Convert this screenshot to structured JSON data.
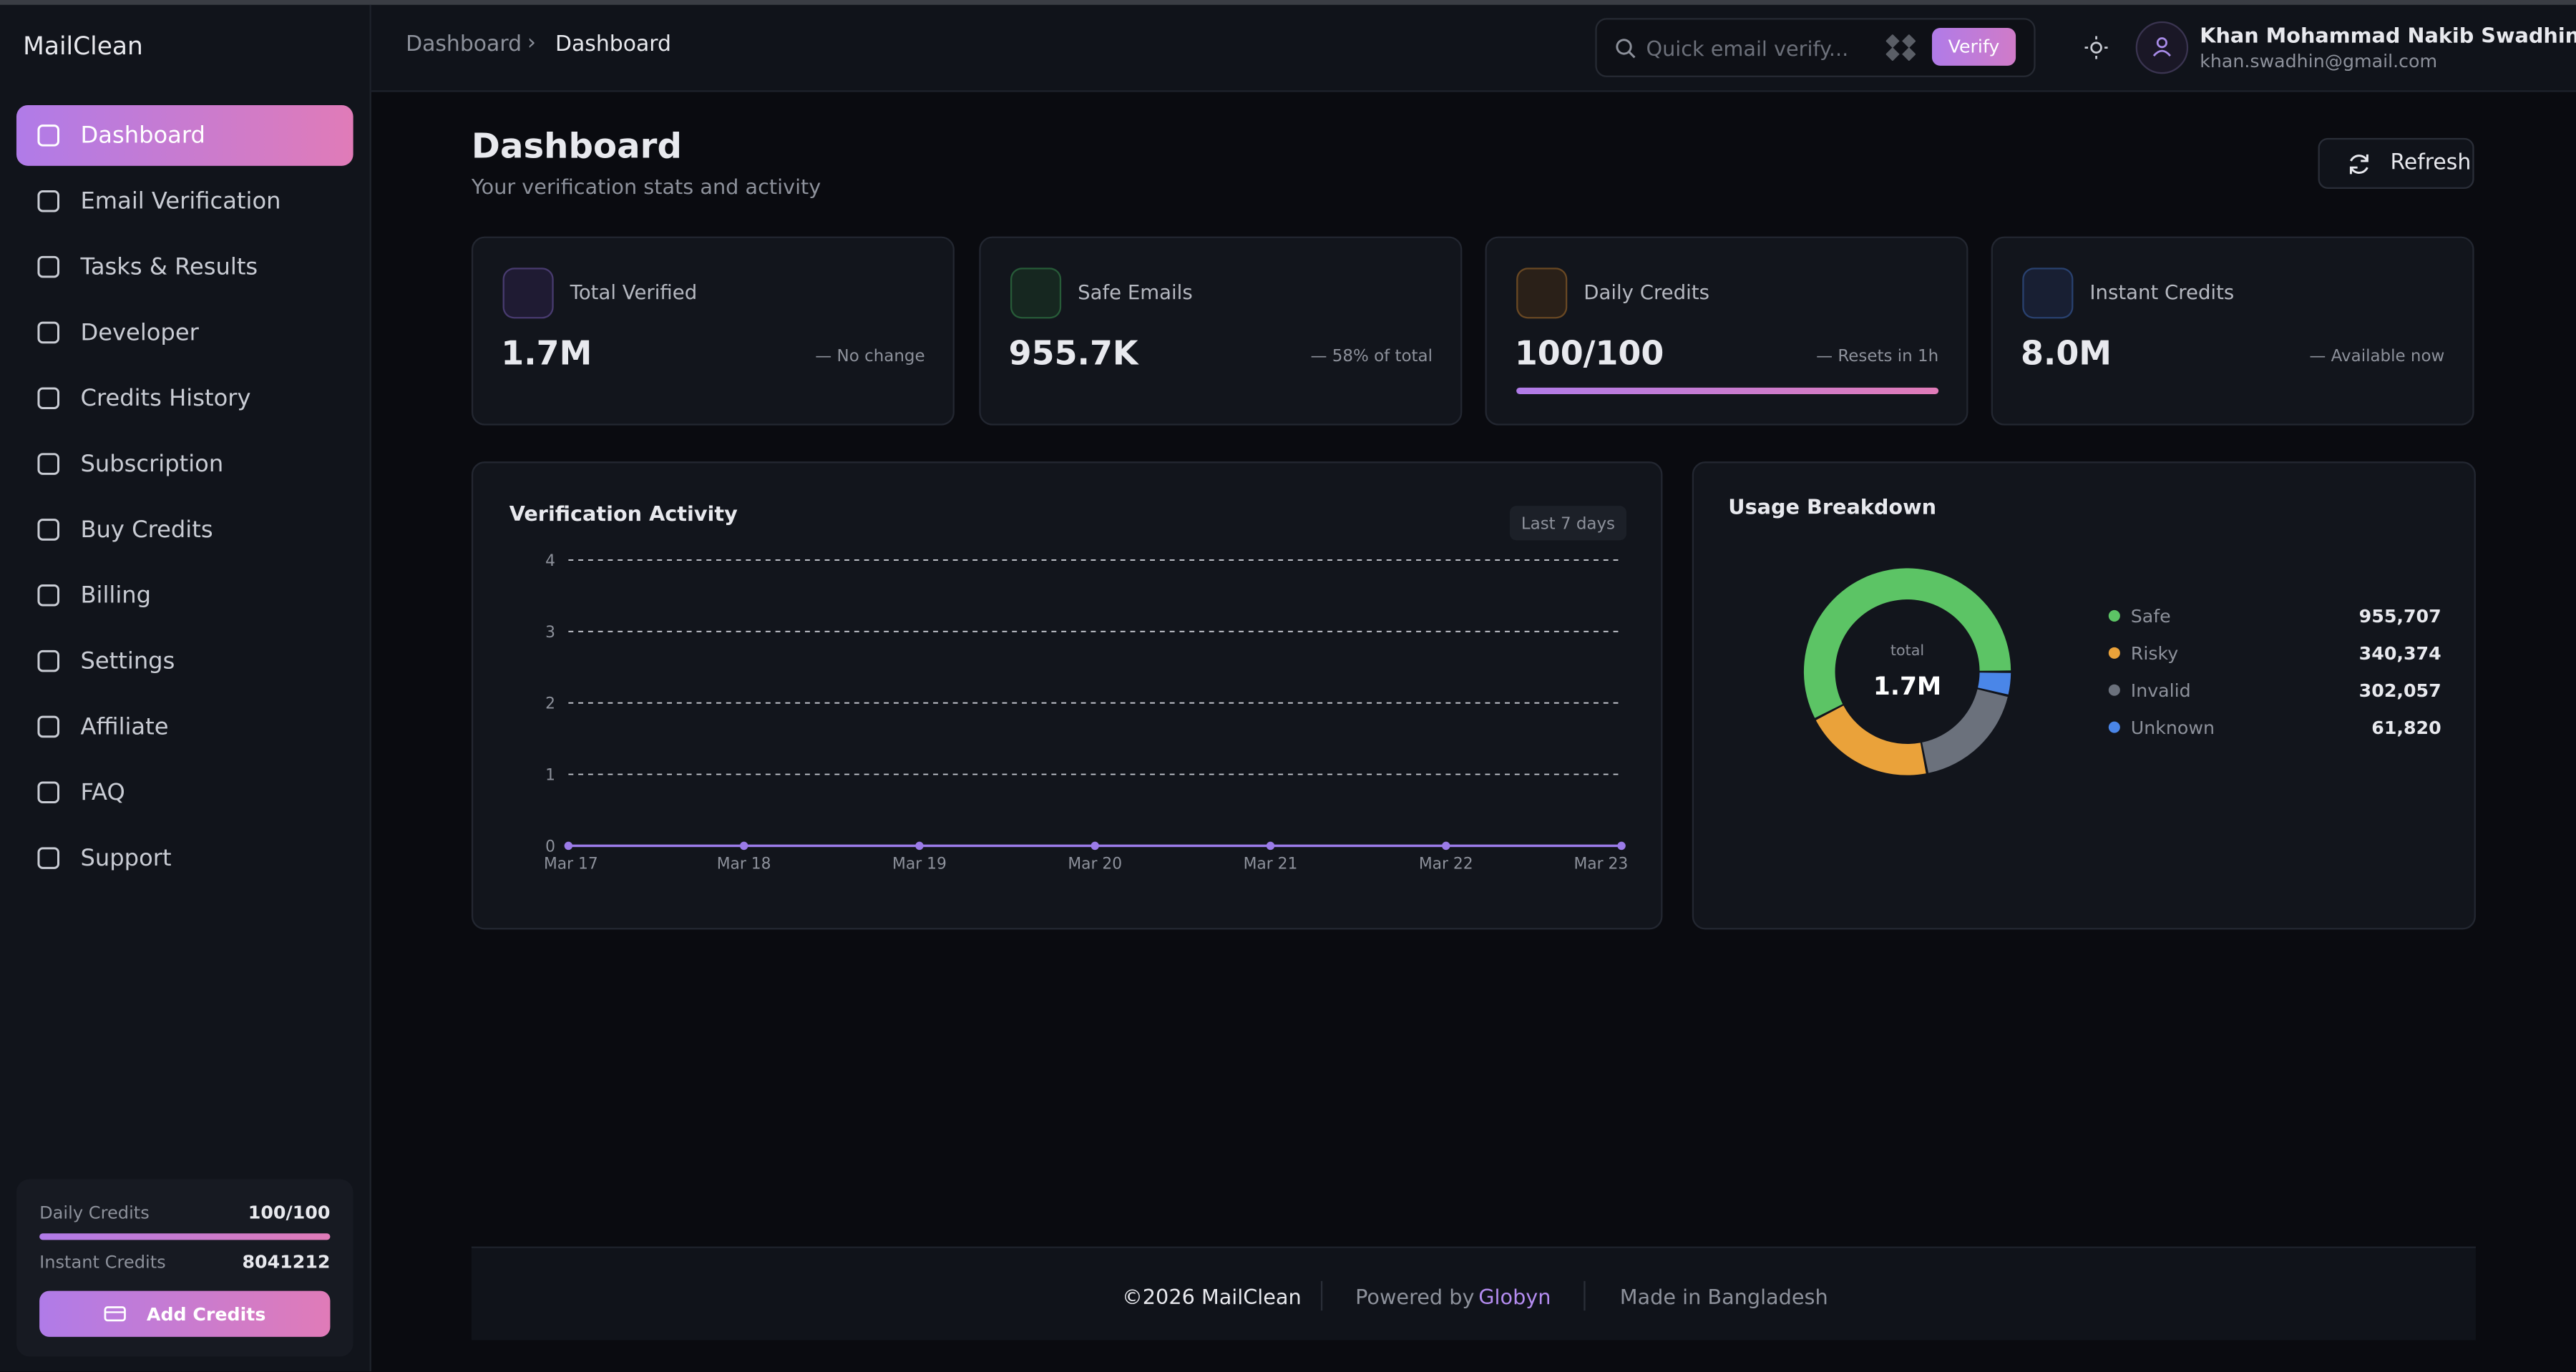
{
  "sidebar": {
    "logo": "MailClean",
    "nav": [
      "Dashboard",
      "Email Verification",
      "Tasks & Results",
      "Developer",
      "Credits History",
      "Subscription",
      "Buy Credits",
      "Billing",
      "Settings",
      "Affiliate",
      "FAQ",
      "Support"
    ],
    "credits": {
      "daily_label": "Daily Credits",
      "daily_value": "100/100",
      "instant_label": "Instant Credits",
      "instant_value": "8041212",
      "button": "Add Credits"
    }
  },
  "header": {
    "breadcrumb": [
      "Dashboard",
      "Dashboard"
    ],
    "search_placeholder": "Quick email verify...",
    "verify_button": "Verify",
    "user_name": "Khan Mohammad Nakib Swadhin",
    "user_email": "khan.swadhin@gmail.com"
  },
  "page": {
    "title": "Dashboard",
    "subtitle": "Your verification stats and activity",
    "refresh": "Refresh"
  },
  "stats": [
    {
      "label": "Total Verified",
      "value": "1.7M",
      "note": "— No change"
    },
    {
      "label": "Safe Emails",
      "value": "955.7K",
      "note": "— 58% of total"
    },
    {
      "label": "Daily Credits",
      "value": "100/100",
      "note": "— Resets in 1h"
    },
    {
      "label": "Instant Credits",
      "value": "8.0M",
      "note": "— Available now"
    }
  ],
  "activity": {
    "type": "line",
    "title": "Verification Activity",
    "range_label": "Last 7 days",
    "categories": [
      "Mar 17",
      "Mar 18",
      "Mar 19",
      "Mar 20",
      "Mar 21",
      "Mar 22",
      "Mar 23"
    ],
    "values": [
      0,
      0,
      0,
      0,
      0,
      0,
      0
    ],
    "color": "#9b7be8",
    "ylim": [
      0,
      4
    ],
    "yticks": [
      0,
      1,
      2,
      3,
      4
    ],
    "grid": true
  },
  "usage": {
    "type": "pie",
    "title": "Usage Breakdown",
    "center_label": "total",
    "center_value": "1.7M",
    "categories": [
      "Safe",
      "Risky",
      "Invalid",
      "Unknown"
    ],
    "values": [
      955707,
      340374,
      302057,
      61820
    ],
    "value_labels": [
      "955,707",
      "340,374",
      "302,057",
      "61,820"
    ],
    "colors": [
      "#5cc465",
      "#eaa23a",
      "#6b717c",
      "#4a86e8"
    ]
  },
  "footer": {
    "copyright": "©2026 MailClean",
    "powered": "Powered by",
    "powered_link": "Globyn",
    "made": "Made in Bangladesh"
  }
}
